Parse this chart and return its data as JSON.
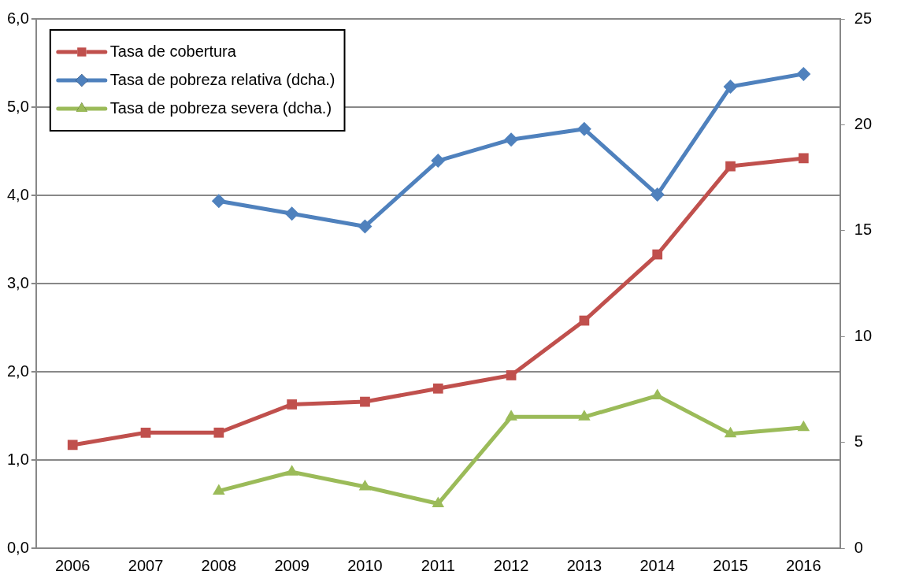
{
  "chart_data": {
    "type": "line",
    "categories": [
      "2006",
      "2007",
      "2008",
      "2009",
      "2010",
      "2011",
      "2012",
      "2013",
      "2014",
      "2015",
      "2016"
    ],
    "series": [
      {
        "name": "Tasa de cobertura",
        "color": "#c0504d",
        "marker": "square",
        "values": [
          1.17,
          1.31,
          1.31,
          1.63,
          1.66,
          1.81,
          1.96,
          2.58,
          3.33,
          4.33,
          4.42
        ]
      },
      {
        "name": "Tasa de pobreza relativa (dcha.)",
        "color": "#4f81bd",
        "marker": "diamond",
        "axis": "y2",
        "values": [
          null,
          null,
          16.4,
          15.8,
          15.2,
          18.3,
          19.3,
          19.8,
          16.7,
          21.8,
          22.4
        ]
      },
      {
        "name": "Tasa de pobreza severa (dcha.)",
        "color": "#9bbb59",
        "marker": "triangle",
        "axis": "y2",
        "values": [
          null,
          null,
          2.7,
          3.6,
          2.9,
          2.1,
          6.2,
          6.2,
          7.2,
          5.4,
          5.7
        ]
      }
    ],
    "ylim": [
      0,
      6
    ],
    "yticks": [
      {
        "value": 0,
        "label": "0,0"
      },
      {
        "value": 1,
        "label": "1,0"
      },
      {
        "value": 2,
        "label": "2,0"
      },
      {
        "value": 3,
        "label": "3,0"
      },
      {
        "value": 4,
        "label": "4,0"
      },
      {
        "value": 5,
        "label": "5,0"
      },
      {
        "value": 6,
        "label": "6,0"
      }
    ],
    "y2lim": [
      0,
      25
    ],
    "y2ticks": [
      0,
      5,
      10,
      15,
      20,
      25
    ],
    "grid": "y",
    "legend": "top left",
    "line_style": "solid"
  }
}
